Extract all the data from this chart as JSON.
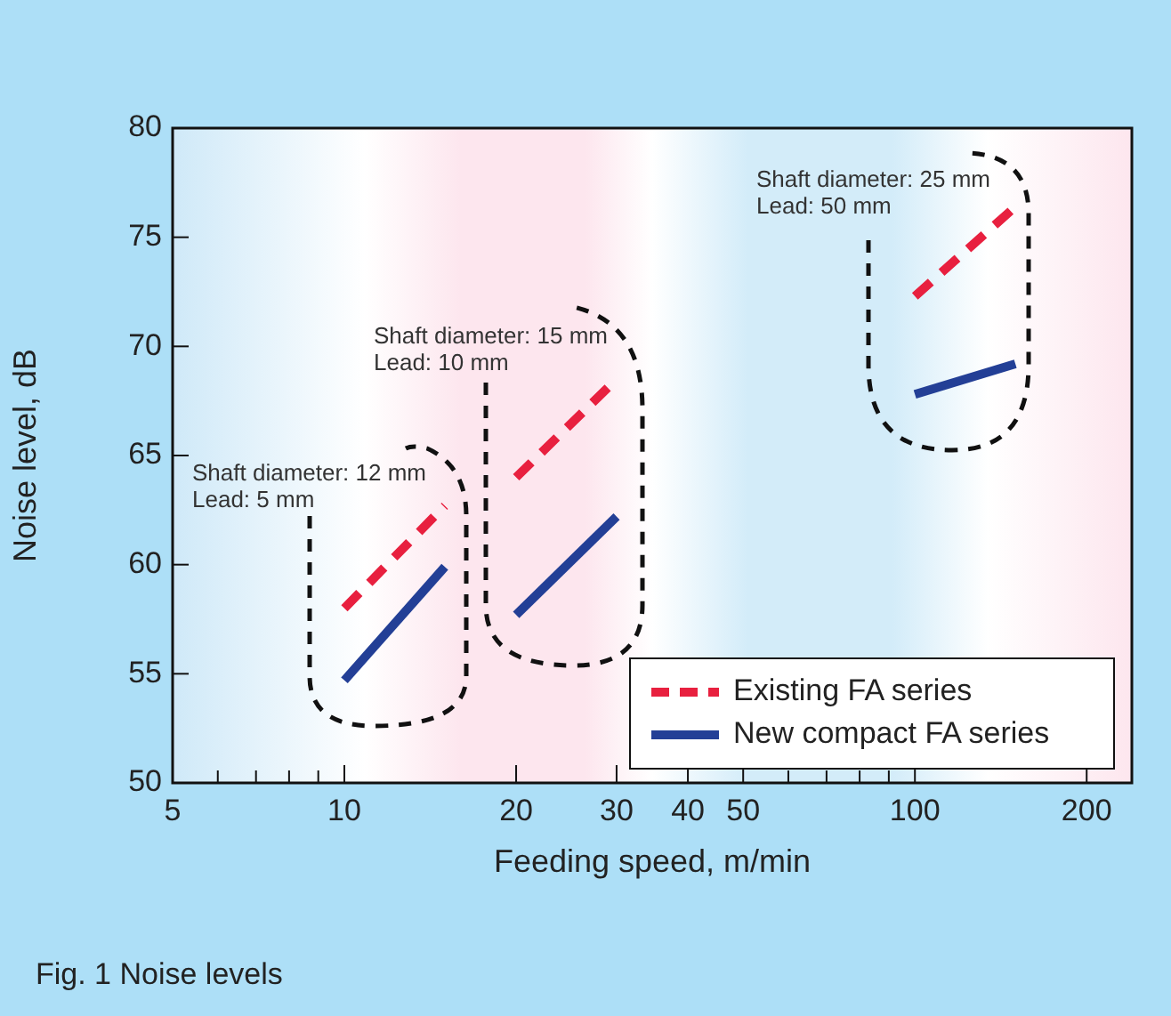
{
  "chart_data": {
    "type": "line",
    "xlabel": "Feeding speed, m/min",
    "ylabel": "Noise level, dB",
    "log": "x",
    "xlim": [
      5,
      240
    ],
    "xticks": [
      5,
      {
        "value": 6,
        "label": null
      },
      {
        "value": 7,
        "label": null
      },
      {
        "value": 8,
        "label": null
      },
      {
        "value": 9,
        "label": null
      },
      10,
      20,
      30,
      40,
      50,
      {
        "value": 60,
        "label": null
      },
      {
        "value": 70,
        "label": null
      },
      {
        "value": 80,
        "label": null
      },
      {
        "value": 90,
        "label": null
      },
      100,
      200
    ],
    "ylim": [
      50,
      80
    ],
    "yticks": [
      50,
      55,
      60,
      65,
      70,
      75,
      80
    ],
    "grid": false,
    "legend": "bottom right",
    "marker": "none",
    "series": [
      {
        "name": "Existing FA series",
        "color": "#e8203f",
        "line_style": "dashed",
        "x": [
          10,
          15
        ],
        "values": [
          58,
          62.7
        ]
      },
      {
        "name": "New compact FA series",
        "color": "#233f96",
        "line_style": "solid",
        "x": [
          10,
          15
        ],
        "values": [
          54.7,
          59.9
        ]
      },
      {
        "color": "#e8203f",
        "line_style": "dashed",
        "x": [
          20,
          30
        ],
        "values": [
          64,
          68.5
        ]
      },
      {
        "color": "#233f96",
        "line_style": "solid",
        "x": [
          20,
          30
        ],
        "values": [
          57.7,
          62.2
        ]
      },
      {
        "color": "#e8203f",
        "line_style": "dashed",
        "x": [
          100,
          150
        ],
        "values": [
          72.3,
          76.4
        ]
      },
      {
        "color": "#233f96",
        "line_style": "solid",
        "x": [
          100,
          150
        ],
        "values": [
          67.8,
          69.2
        ]
      }
    ],
    "annotations": [
      "Shaft diameter: 12 mm\nLead: 5 mm",
      "Shaft diameter: 15 mm\nLead: 10 mm",
      "Shaft diameter: 25 mm\nLead: 50 mm",
      "Fig. 1  Noise levels"
    ]
  }
}
